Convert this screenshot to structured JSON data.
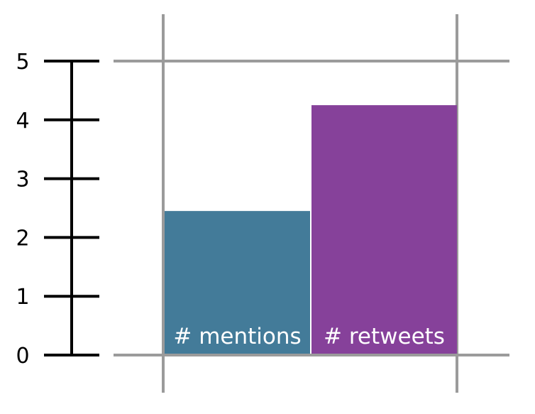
{
  "chart_data": {
    "type": "bar",
    "title": "",
    "xlabel": "",
    "ylabel": "",
    "ylim": [
      0,
      5
    ],
    "ytick_labels": [
      "0",
      "1",
      "2",
      "3",
      "4",
      "5"
    ],
    "categories": [
      "# mentions",
      "# retweets"
    ],
    "values": [
      2.45,
      4.25
    ],
    "colors": [
      "#437b99",
      "#86419a"
    ],
    "grid": true,
    "legend": "none"
  }
}
